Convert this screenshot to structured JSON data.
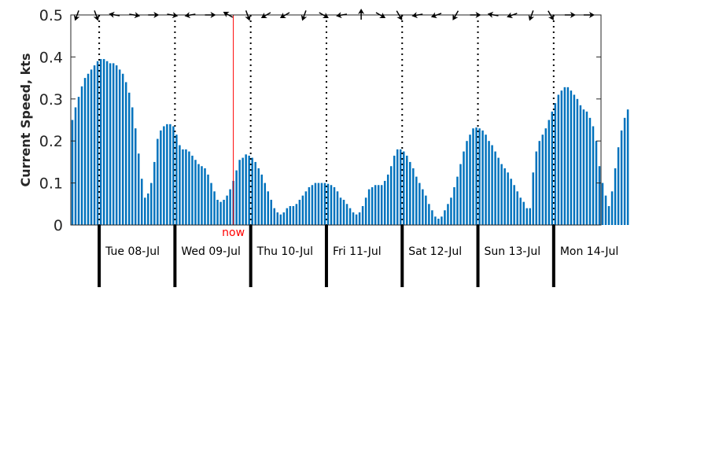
{
  "chart_data": {
    "type": "bar",
    "ylabel": "Current Speed, kts",
    "ylim": [
      0,
      0.5
    ],
    "yticks": [
      "0",
      "0.1",
      "0.2",
      "0.3",
      "0.4",
      "0.5"
    ],
    "xlim": [
      0,
      168
    ],
    "x_start": "07-Jul 15:00",
    "bar_step_hours": 1,
    "values": [
      0.25,
      0.28,
      0.305,
      0.33,
      0.35,
      0.36,
      0.37,
      0.38,
      0.39,
      0.395,
      0.395,
      0.39,
      0.385,
      0.385,
      0.38,
      0.37,
      0.36,
      0.34,
      0.315,
      0.28,
      0.23,
      0.17,
      0.11,
      0.065,
      0.075,
      0.1,
      0.15,
      0.205,
      0.225,
      0.235,
      0.24,
      0.24,
      0.235,
      0.215,
      0.19,
      0.18,
      0.18,
      0.175,
      0.165,
      0.155,
      0.145,
      0.14,
      0.135,
      0.12,
      0.1,
      0.08,
      0.06,
      0.055,
      0.06,
      0.07,
      0.085,
      0.105,
      0.13,
      0.155,
      0.16,
      0.168,
      0.165,
      0.16,
      0.15,
      0.135,
      0.12,
      0.1,
      0.08,
      0.06,
      0.04,
      0.03,
      0.025,
      0.03,
      0.04,
      0.045,
      0.045,
      0.05,
      0.06,
      0.07,
      0.08,
      0.09,
      0.095,
      0.1,
      0.1,
      0.1,
      0.1,
      0.098,
      0.095,
      0.09,
      0.08,
      0.065,
      0.06,
      0.05,
      0.04,
      0.03,
      0.025,
      0.03,
      0.045,
      0.065,
      0.085,
      0.09,
      0.095,
      0.095,
      0.095,
      0.105,
      0.12,
      0.14,
      0.165,
      0.18,
      0.18,
      0.175,
      0.165,
      0.15,
      0.135,
      0.115,
      0.1,
      0.085,
      0.07,
      0.05,
      0.035,
      0.02,
      0.015,
      0.02,
      0.035,
      0.05,
      0.065,
      0.09,
      0.115,
      0.145,
      0.175,
      0.2,
      0.215,
      0.23,
      0.232,
      0.23,
      0.225,
      0.215,
      0.2,
      0.19,
      0.175,
      0.16,
      0.145,
      0.135,
      0.125,
      0.11,
      0.095,
      0.08,
      0.065,
      0.055,
      0.04,
      0.04,
      0.125,
      0.175,
      0.2,
      0.215,
      0.23,
      0.25,
      0.27,
      0.29,
      0.31,
      0.32,
      0.328,
      0.328,
      0.32,
      0.31,
      0.3,
      0.285,
      0.275,
      0.27,
      0.255,
      0.235,
      0.2,
      0.14,
      0.1,
      0.07,
      0.045,
      0.08,
      0.135,
      0.185,
      0.225,
      0.255,
      0.275
    ],
    "day_labels": [
      "Tue 08-Jul",
      "Wed 09-Jul",
      "Thu 10-Jul",
      "Fri 11-Jul",
      "Sat 12-Jul",
      "Sun 13-Jul",
      "Mon 14-Jul"
    ],
    "midnights_hours": [
      9,
      33,
      57,
      81,
      105,
      129,
      153
    ],
    "now_hours": 51.5,
    "now_label": "now",
    "direction_arrows": [
      {
        "hours": 2,
        "direction_deg": 200
      },
      {
        "hours": 8,
        "direction_deg": 160
      },
      {
        "hours": 14,
        "direction_deg": 280
      },
      {
        "hours": 20,
        "direction_deg": 100
      },
      {
        "hours": 26,
        "direction_deg": 90
      },
      {
        "hours": 32,
        "direction_deg": 100
      },
      {
        "hours": 38,
        "direction_deg": 260
      },
      {
        "hours": 44,
        "direction_deg": 90
      },
      {
        "hours": 50,
        "direction_deg": 300
      },
      {
        "hours": 56,
        "direction_deg": 160
      },
      {
        "hours": 62,
        "direction_deg": 240
      },
      {
        "hours": 68,
        "direction_deg": 240
      },
      {
        "hours": 74,
        "direction_deg": 200
      },
      {
        "hours": 80,
        "direction_deg": 120
      },
      {
        "hours": 86,
        "direction_deg": 260
      },
      {
        "hours": 92,
        "direction_deg": 0
      },
      {
        "hours": 98,
        "direction_deg": 120
      },
      {
        "hours": 104,
        "direction_deg": 150
      },
      {
        "hours": 110,
        "direction_deg": 260
      },
      {
        "hours": 116,
        "direction_deg": 250
      },
      {
        "hours": 122,
        "direction_deg": 210
      },
      {
        "hours": 128,
        "direction_deg": 90
      },
      {
        "hours": 134,
        "direction_deg": 280
      },
      {
        "hours": 140,
        "direction_deg": 250
      },
      {
        "hours": 146,
        "direction_deg": 200
      },
      {
        "hours": 152,
        "direction_deg": 150
      },
      {
        "hours": 158,
        "direction_deg": 90
      },
      {
        "hours": 164,
        "direction_deg": 90
      }
    ],
    "colors": {
      "bar": "#0072bd",
      "now_line": "#ff0000",
      "axis": "#262626",
      "midnight_line": "#000000"
    },
    "grid": false,
    "legend": "none"
  }
}
